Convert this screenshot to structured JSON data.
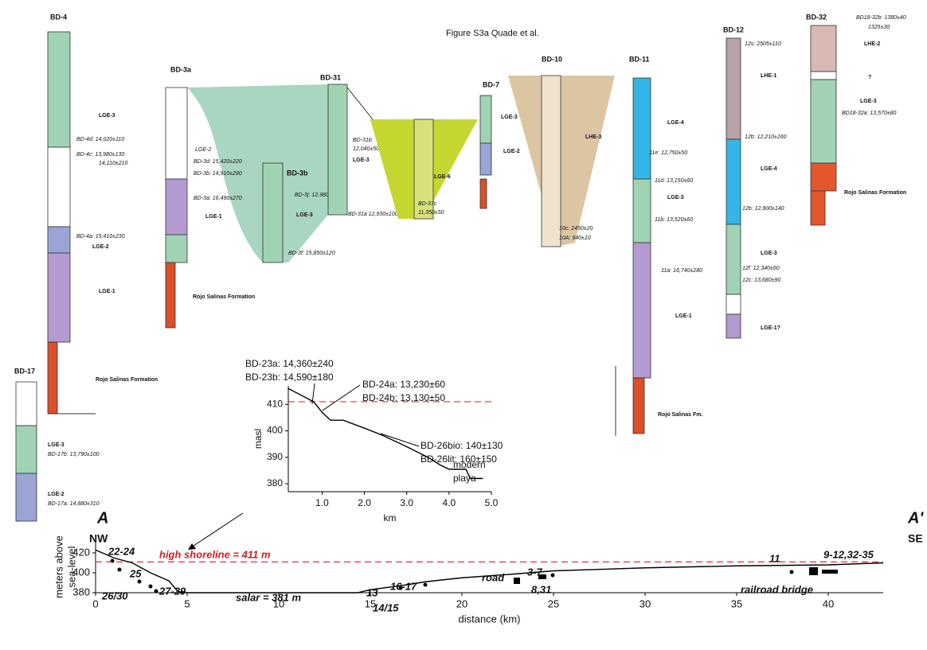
{
  "title": "Figure S3a Quade et al.",
  "columns": [
    {
      "name": "BD-4",
      "labels": [
        "LGE-3",
        "BD-4d: 14,020±110",
        "BD-4c: 13,980±130",
        "14,110±210",
        "BD-4a: 15,410±230",
        "LGE-2",
        "LGE-1",
        "Rojo Salinas Formation"
      ]
    },
    {
      "name": "BD-17",
      "labels": [
        "LGE-3",
        "BD-17b: 13,790±100",
        "LGE-2",
        "BD-17a: 14,880±310"
      ]
    },
    {
      "name": "BD-3a",
      "labels": [
        "LGE-2",
        "BD-3d: 15,420±220",
        "BD-3b: 14,910±290",
        "BD-3a: 16,490±270",
        "LGE-1",
        "Rojo Salinas Formation"
      ]
    },
    {
      "name": "BD-3b",
      "labels": [
        "BD-3j: 12,980±120",
        "LGE-3",
        "BD-3f: 15,850±120"
      ]
    },
    {
      "name": "BD-31",
      "labels": [
        "BD-31b",
        "12,040±50",
        "LGE-3",
        "BD-31a 12,930±100"
      ]
    },
    {
      "name": "BD-7",
      "labels": [
        "LGE-3",
        "LGE-2",
        "LGE-6",
        "BD-37c",
        "11,350±50"
      ]
    },
    {
      "name": "BD-10",
      "labels": [
        "LHE-3",
        "10c: 2450±20",
        "10A: 940±10"
      ]
    },
    {
      "name": "BD-11",
      "labels": [
        "LGE-4",
        "11e: 12,750±50",
        "11d: 13,150±60",
        "LGE-3",
        "11b: 13,520±60",
        "11a: 16,740±280",
        "LGE-1",
        "Rojo Salinas Fm."
      ]
    },
    {
      "name": "BD-12",
      "labels": [
        "12s: 2505±110",
        "LHE-1",
        "12b: 12,210±160",
        "LGE-4",
        "12b: 12,900±140",
        "LGE-3",
        "12f: 12,340±60",
        "12c: 13,680±90",
        "LGE-1?"
      ]
    },
    {
      "name": "BD-32",
      "labels": [
        "BD18-32b: 1380±40",
        "1325±30",
        "LHE-2",
        "?",
        "LGE-3",
        "BD18-32a: 13,570±80",
        "Rojo Salinas Formation"
      ]
    }
  ],
  "chart_data": [
    {
      "type": "line",
      "color": "#000000",
      "x": [
        0.2,
        0.8,
        1.0,
        1.2,
        1.5,
        2.0,
        2.4,
        3.0,
        3.5,
        3.8,
        4.0,
        4.4,
        4.5,
        4.8
      ],
      "values": [
        416,
        411,
        407,
        404,
        404,
        401,
        398.5,
        394,
        390,
        387,
        385.5,
        385.5,
        382,
        382
      ],
      "xlim": [
        0.2,
        5.0
      ],
      "ylim": [
        377,
        417
      ],
      "xticks": [
        {
          "value": 1,
          "label": "1.0"
        },
        {
          "value": 2,
          "label": "2.0"
        },
        {
          "value": 3,
          "label": "3.0"
        },
        {
          "value": 4,
          "label": "4.0"
        },
        {
          "value": 5,
          "label": "5.0"
        }
      ],
      "yticks": [
        380,
        390,
        400,
        410
      ],
      "xlabel": "km",
      "ylabel": "masl",
      "reference_line": 411,
      "reference_color": "#e03030",
      "annotations": [
        "BD-23a: 14,360±240",
        "BD-23b: 14,590±180",
        "BD-24a: 13,230±60",
        "BD-24b: 13,130±50",
        "BD-26bio: 140±130",
        "BD-26lit: 160±150",
        "modern",
        "playa"
      ]
    },
    {
      "type": "line",
      "color": "#000000",
      "x": [
        0,
        1,
        2,
        3,
        4,
        4.5,
        5,
        14.3,
        15,
        17,
        18,
        20,
        23,
        25,
        30,
        35,
        40,
        43
      ],
      "values": [
        423,
        415,
        410,
        400,
        392,
        381,
        380,
        380,
        383,
        388,
        391,
        395,
        399,
        402,
        405,
        407,
        408,
        410
      ],
      "xlim": [
        0,
        43
      ],
      "ylim": [
        380,
        432
      ],
      "xticks": [
        0,
        5,
        10,
        15,
        20,
        25,
        30,
        35,
        40
      ],
      "yticks": [
        380,
        400,
        420
      ],
      "xlabel": "distance (km)",
      "ylabel": [
        "meters above",
        "sea-level"
      ],
      "reference_line": 411,
      "reference_color": "#e03030",
      "annotations": [
        "A",
        "A'",
        "NW",
        "SE",
        "high shoreline = 411 m",
        "22-24",
        "25",
        "26/30",
        "27-29",
        "salar = 381 m",
        "13",
        "14/15",
        "16-17",
        "road",
        "3-7",
        "8,31",
        "11",
        "9-12,32-35",
        "railroad bridge"
      ]
    }
  ]
}
